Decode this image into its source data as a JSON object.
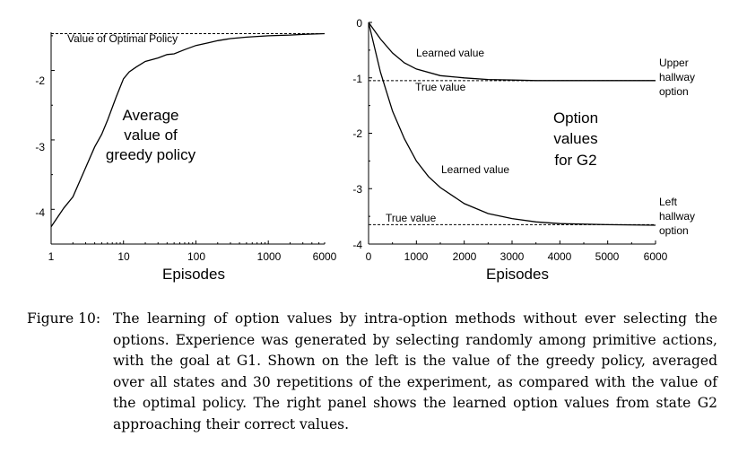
{
  "figure_caption": {
    "label": "Figure 10:",
    "text": "The learning of option values by intra-option methods without ever selecting the options. Experience was generated by selecting randomly among primitive actions, with the goal at G1. Shown on the left is the value of the greedy policy, averaged over all states and 30 repetitions of the experiment, as compared with the value of the optimal policy. The right panel shows the learned option values from state G2 approaching their correct values."
  },
  "chart_data": [
    {
      "type": "line",
      "panel": "left",
      "title": "",
      "xlabel": "Episodes",
      "ylabel": "",
      "x_scale": "log",
      "xlim": [
        1,
        6000
      ],
      "ylim": [
        -4.5,
        -1.45
      ],
      "x_ticks": [
        "1",
        "10",
        "100",
        "1000",
        "6000"
      ],
      "y_ticks": [
        "-2",
        "-3",
        "-4"
      ],
      "annotations": [
        "Value of Optimal Policy",
        "Average",
        "value of",
        "greedy policy"
      ],
      "reference_lines": [
        {
          "name": "Value of Optimal Policy",
          "y": -1.47
        }
      ],
      "series": [
        {
          "x": [
            1,
            1.5,
            2,
            3,
            4,
            5,
            6,
            8,
            10,
            12,
            15,
            20,
            30,
            40,
            50,
            70,
            100,
            150,
            200,
            300,
            500,
            1000,
            2000,
            3000,
            6000
          ],
          "y": [
            -4.25,
            -3.98,
            -3.82,
            -3.4,
            -3.1,
            -2.92,
            -2.72,
            -2.37,
            -2.12,
            -2.02,
            -1.95,
            -1.87,
            -1.82,
            -1.77,
            -1.76,
            -1.7,
            -1.64,
            -1.6,
            -1.57,
            -1.54,
            -1.52,
            -1.5,
            -1.49,
            -1.48,
            -1.47
          ]
        }
      ]
    },
    {
      "type": "line",
      "panel": "right",
      "title": "",
      "xlabel": "Episodes",
      "ylabel": "",
      "xlim": [
        0,
        6000
      ],
      "ylim": [
        -4,
        0
      ],
      "x_ticks": [
        "0",
        "1000",
        "2000",
        "3000",
        "4000",
        "5000",
        "6000"
      ],
      "y_ticks": [
        "0",
        "-1",
        "-2",
        "-3",
        "-4"
      ],
      "annotations": [
        "Option",
        "values",
        "for G2"
      ],
      "reference_lines": [
        {
          "name": "True value",
          "y": -1.05
        },
        {
          "name": "True value",
          "y": -3.65
        }
      ],
      "series": [
        {
          "name": "Learned value",
          "group": "Upper hallway option",
          "x": [
            0,
            250,
            500,
            750,
            1000,
            1500,
            2000,
            2500,
            3000,
            3500,
            4000,
            5000,
            6000
          ],
          "y": [
            0,
            -0.3,
            -0.55,
            -0.73,
            -0.84,
            -0.96,
            -1.0,
            -1.03,
            -1.04,
            -1.05,
            -1.05,
            -1.05,
            -1.05
          ]
        },
        {
          "name": "Learned value",
          "group": "Left hallway option",
          "x": [
            0,
            250,
            500,
            750,
            1000,
            1250,
            1500,
            2000,
            2500,
            3000,
            3500,
            4000,
            5000,
            6000
          ],
          "y": [
            0,
            -0.9,
            -1.6,
            -2.1,
            -2.5,
            -2.78,
            -2.98,
            -3.27,
            -3.45,
            -3.54,
            -3.6,
            -3.63,
            -3.65,
            -3.66
          ]
        }
      ],
      "side_labels": [
        {
          "lines": [
            "Upper",
            "hallway",
            "option"
          ]
        },
        {
          "lines": [
            "Left",
            "hallway",
            "option"
          ]
        }
      ]
    }
  ]
}
